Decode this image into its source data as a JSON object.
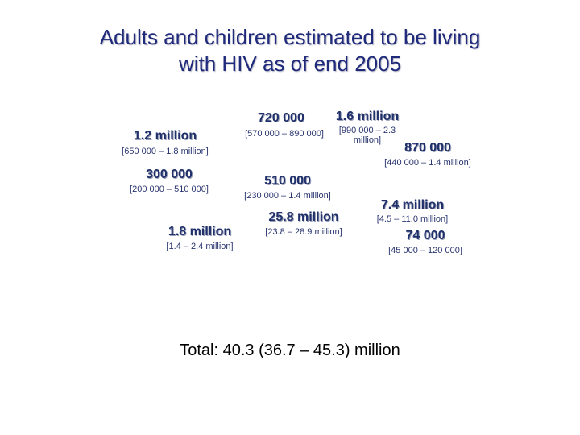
{
  "slide": {
    "title_line1": "Adults and children estimated to be living",
    "title_line2": "with HIV as of end 2005",
    "regions": [
      {
        "value": "1.2 million",
        "range": "[650 000 – 1.8 million]"
      },
      {
        "value": "720 000",
        "range": "[570 000 – 890 000]"
      },
      {
        "value": "1.6 million",
        "range": "[990 000 – 2.3 million]"
      },
      {
        "value": "870 000",
        "range": "[440 000 – 1.4 million]"
      },
      {
        "value": "300 000",
        "range": "[200 000 – 510 000]"
      },
      {
        "value": "510 000",
        "range": "[230 000 – 1.4 million]"
      },
      {
        "value": "7.4 million",
        "range": "[4.5 – 11.0 million]"
      },
      {
        "value": "25.8 million",
        "range": "[23.8 – 28.9 million]"
      },
      {
        "value": "1.8 million",
        "range": "[1.4 – 2.4 million]"
      },
      {
        "value": "74 000",
        "range": "[45 000 – 120 000]"
      }
    ],
    "total": "Total: 40.3 (36.7 – 45.3) million"
  }
}
